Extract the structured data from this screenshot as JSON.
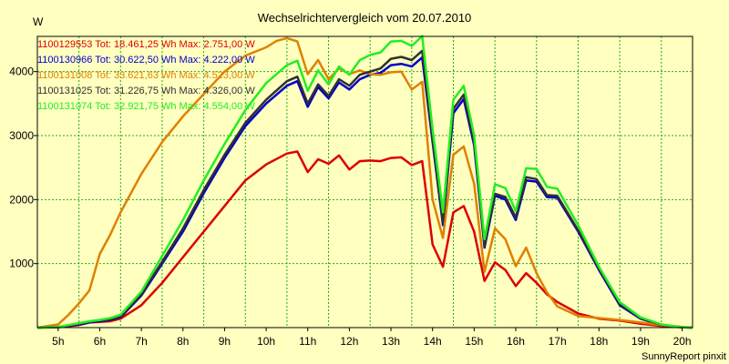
{
  "chart_data": {
    "type": "line",
    "title": "Wechselrichtervergleich vom 20.07.2010",
    "ylabel": "W",
    "xlabel": "",
    "credit": "SunnyReport pinxit",
    "x_ticks": [
      "5h",
      "6h",
      "7h",
      "8h",
      "9h",
      "10h",
      "11h",
      "12h",
      "13h",
      "14h",
      "15h",
      "16h",
      "17h",
      "18h",
      "19h",
      "20h"
    ],
    "x_tick_values": [
      5,
      6,
      7,
      8,
      9,
      10,
      11,
      12,
      13,
      14,
      15,
      16,
      17,
      18,
      19,
      20
    ],
    "y_ticks": [
      "1000",
      "2000",
      "3000",
      "4000"
    ],
    "y_tick_values": [
      1000,
      2000,
      3000,
      4000
    ],
    "xlim": [
      4.5,
      20.25
    ],
    "ylim": [
      0,
      4550
    ],
    "grid": true,
    "legend_position": "top-left",
    "series": [
      {
        "name": "1100129553",
        "legend": "1100129553 Tot: 18.461,25 Wh Max: 2.751,00 W",
        "color": "#dd0000",
        "x": [
          4.5,
          5.0,
          5.5,
          5.75,
          6.0,
          6.25,
          6.5,
          7.0,
          7.5,
          8.0,
          8.5,
          9.0,
          9.5,
          10.0,
          10.5,
          10.75,
          11.0,
          11.25,
          11.5,
          11.75,
          12.0,
          12.25,
          12.5,
          12.75,
          13.0,
          13.25,
          13.5,
          13.75,
          14.0,
          14.25,
          14.5,
          14.75,
          15.0,
          15.25,
          15.5,
          15.75,
          16.0,
          16.25,
          16.5,
          16.75,
          17.0,
          17.5,
          18.0,
          18.5,
          19.0,
          19.5,
          20.0,
          20.25
        ],
        "values": [
          0,
          5,
          40,
          80,
          90,
          100,
          140,
          350,
          700,
          1100,
          1500,
          1900,
          2300,
          2550,
          2720,
          2751,
          2430,
          2630,
          2560,
          2690,
          2470,
          2600,
          2610,
          2600,
          2650,
          2660,
          2540,
          2600,
          1300,
          950,
          1800,
          1900,
          1500,
          730,
          1020,
          900,
          650,
          850,
          700,
          520,
          400,
          220,
          140,
          110,
          60,
          25,
          5,
          0
        ]
      },
      {
        "name": "1100130966",
        "legend": "1100130966 Tot: 30.622,50 Wh Max: 4.222,00 W",
        "color": "#0000cc",
        "x": [
          4.5,
          5.0,
          5.5,
          5.75,
          6.0,
          6.25,
          6.5,
          7.0,
          7.5,
          8.0,
          8.5,
          9.0,
          9.5,
          10.0,
          10.5,
          10.75,
          11.0,
          11.25,
          11.5,
          11.75,
          12.0,
          12.25,
          12.5,
          12.75,
          13.0,
          13.25,
          13.5,
          13.75,
          14.0,
          14.25,
          14.5,
          14.75,
          15.0,
          15.25,
          15.5,
          15.75,
          16.0,
          16.25,
          16.5,
          16.75,
          17.0,
          17.5,
          18.0,
          18.5,
          19.0,
          19.5,
          20.0,
          20.25
        ],
        "values": [
          0,
          10,
          50,
          80,
          100,
          120,
          160,
          500,
          1000,
          1500,
          2100,
          2650,
          3150,
          3500,
          3780,
          3850,
          3450,
          3760,
          3580,
          3830,
          3720,
          3880,
          3950,
          3980,
          4100,
          4120,
          4080,
          4222,
          2900,
          1600,
          3350,
          3570,
          2850,
          1250,
          2060,
          2000,
          1680,
          2300,
          2280,
          2040,
          2030,
          1500,
          900,
          350,
          140,
          40,
          5,
          0
        ]
      },
      {
        "name": "1100131008",
        "legend": "1100131008 Tot: 33.621,63 Wh Max: 4.523,00 W",
        "color": "#e08000",
        "x": [
          4.5,
          5.0,
          5.25,
          5.5,
          5.75,
          6.0,
          6.25,
          6.5,
          7.0,
          7.5,
          8.0,
          8.5,
          9.0,
          9.5,
          10.0,
          10.25,
          10.5,
          10.75,
          11.0,
          11.25,
          11.5,
          11.75,
          12.0,
          12.25,
          12.5,
          12.75,
          13.0,
          13.25,
          13.5,
          13.75,
          14.0,
          14.25,
          14.5,
          14.75,
          15.0,
          15.25,
          15.5,
          15.75,
          16.0,
          16.25,
          16.5,
          16.75,
          17.0,
          17.5,
          18.0,
          18.5,
          19.0,
          19.5,
          20.0,
          20.25
        ],
        "values": [
          0,
          50,
          200,
          380,
          580,
          1150,
          1450,
          1800,
          2400,
          2900,
          3300,
          3650,
          4000,
          4250,
          4380,
          4480,
          4523,
          4470,
          3960,
          4180,
          3880,
          4050,
          3960,
          4020,
          3960,
          3950,
          3990,
          4000,
          3720,
          3840,
          2000,
          1400,
          2700,
          2830,
          2250,
          870,
          1550,
          1380,
          960,
          1250,
          850,
          550,
          330,
          180,
          150,
          120,
          80,
          40,
          10,
          0
        ]
      },
      {
        "name": "1100131025",
        "legend": "1100131025 Tot: 31.226,75 Wh Max: 4.326,00 W",
        "color": "#303030",
        "x": [
          4.5,
          5.0,
          5.5,
          5.75,
          6.0,
          6.25,
          6.5,
          7.0,
          7.5,
          8.0,
          8.5,
          9.0,
          9.5,
          10.0,
          10.5,
          10.75,
          11.0,
          11.25,
          11.5,
          11.75,
          12.0,
          12.25,
          12.5,
          12.75,
          13.0,
          13.25,
          13.5,
          13.75,
          14.0,
          14.25,
          14.5,
          14.75,
          15.0,
          15.25,
          15.5,
          15.75,
          16.0,
          16.25,
          16.5,
          16.75,
          17.0,
          17.5,
          18.0,
          18.5,
          19.0,
          19.5,
          20.0,
          20.25
        ],
        "values": [
          0,
          10,
          60,
          90,
          110,
          130,
          170,
          520,
          1030,
          1550,
          2150,
          2700,
          3200,
          3560,
          3850,
          3920,
          3500,
          3800,
          3620,
          3880,
          3780,
          3950,
          4000,
          4050,
          4200,
          4230,
          4180,
          4326,
          2950,
          1650,
          3420,
          3640,
          2900,
          1280,
          2090,
          2040,
          1720,
          2350,
          2320,
          2070,
          2060,
          1520,
          920,
          370,
          150,
          45,
          5,
          0
        ]
      },
      {
        "name": "1100131074",
        "legend": "1100131074 Tot: 32.921,75 Wh Max: 4.554,00 W",
        "color": "#22ee22",
        "x": [
          4.5,
          5.0,
          5.5,
          5.75,
          6.0,
          6.25,
          6.5,
          7.0,
          7.5,
          8.0,
          8.5,
          9.0,
          9.5,
          10.0,
          10.5,
          10.75,
          11.0,
          11.25,
          11.5,
          11.75,
          12.0,
          12.25,
          12.5,
          12.75,
          13.0,
          13.25,
          13.5,
          13.75,
          14.0,
          14.25,
          14.5,
          14.75,
          15.0,
          15.25,
          15.5,
          15.75,
          16.0,
          16.25,
          16.5,
          16.75,
          17.0,
          17.5,
          18.0,
          18.5,
          19.0,
          19.5,
          20.0,
          20.25
        ],
        "values": [
          0,
          10,
          70,
          100,
          120,
          150,
          200,
          560,
          1120,
          1680,
          2300,
          2870,
          3400,
          3820,
          4100,
          4170,
          3700,
          4020,
          3800,
          4080,
          3950,
          4180,
          4260,
          4300,
          4470,
          4480,
          4400,
          4554,
          3100,
          1800,
          3560,
          3780,
          3000,
          1380,
          2240,
          2180,
          1820,
          2490,
          2480,
          2200,
          2170,
          1600,
          950,
          400,
          160,
          50,
          5,
          0
        ]
      }
    ]
  }
}
